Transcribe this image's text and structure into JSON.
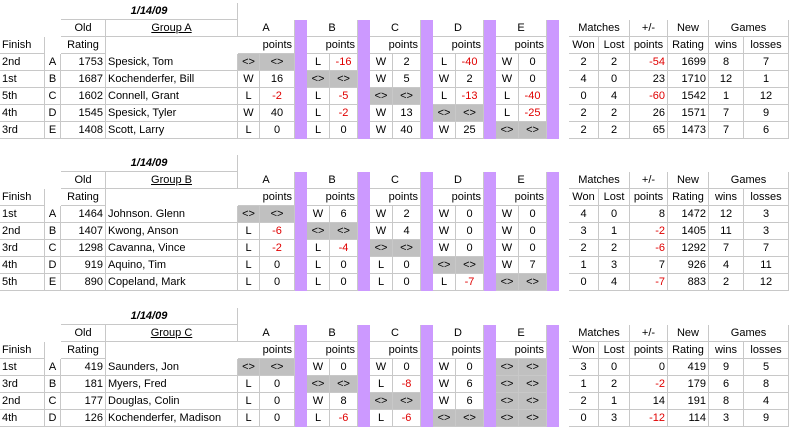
{
  "tables": [
    {
      "date": "1/14/09",
      "group": "Group A",
      "opponents": [
        "A",
        "B",
        "C",
        "D",
        "E"
      ],
      "header": {
        "finish": "Finish",
        "old": "Old",
        "rating": "Rating",
        "points": "points",
        "matches": "Matches",
        "won": "Won",
        "lost": "Lost",
        "plusminus": "+/-",
        "new": "New",
        "newrating": "Rating",
        "games": "Games",
        "wins": "wins",
        "losses": "losses"
      },
      "rows": [
        {
          "finish": "2nd",
          "seed": "A",
          "rating": "1753",
          "name": "Spesick, Tom",
          "res": [
            [
              "<>",
              "<>"
            ],
            [
              "L",
              "-16"
            ],
            [
              "W",
              "2"
            ],
            [
              "L",
              "-40"
            ],
            [
              "W",
              "0"
            ]
          ],
          "won": "2",
          "lost": "2",
          "pm": "-54",
          "new": "1699",
          "wins": "8",
          "losses": "7"
        },
        {
          "finish": "1st",
          "seed": "B",
          "rating": "1687",
          "name": "Kochenderfer, Bill",
          "res": [
            [
              "W",
              "16"
            ],
            [
              "<>",
              "<>"
            ],
            [
              "W",
              "5"
            ],
            [
              "W",
              "2"
            ],
            [
              "W",
              "0"
            ]
          ],
          "won": "4",
          "lost": "0",
          "pm": "23",
          "new": "1710",
          "wins": "12",
          "losses": "1"
        },
        {
          "finish": "5th",
          "seed": "C",
          "rating": "1602",
          "name": "Connell, Grant",
          "res": [
            [
              "L",
              "-2"
            ],
            [
              "L",
              "-5"
            ],
            [
              "<>",
              "<>"
            ],
            [
              "L",
              "-13"
            ],
            [
              "L",
              "-40"
            ]
          ],
          "won": "0",
          "lost": "4",
          "pm": "-60",
          "new": "1542",
          "wins": "1",
          "losses": "12"
        },
        {
          "finish": "4th",
          "seed": "D",
          "rating": "1545",
          "name": "Spesick, Tyler",
          "res": [
            [
              "W",
              "40"
            ],
            [
              "L",
              "-2"
            ],
            [
              "W",
              "13"
            ],
            [
              "<>",
              "<>"
            ],
            [
              "L",
              "-25"
            ]
          ],
          "won": "2",
          "lost": "2",
          "pm": "26",
          "new": "1571",
          "wins": "7",
          "losses": "9"
        },
        {
          "finish": "3rd",
          "seed": "E",
          "rating": "1408",
          "name": "Scott, Larry",
          "res": [
            [
              "L",
              "0"
            ],
            [
              "L",
              "0"
            ],
            [
              "W",
              "40"
            ],
            [
              "W",
              "25"
            ],
            [
              "<>",
              "<>"
            ]
          ],
          "won": "2",
          "lost": "2",
          "pm": "65",
          "new": "1473",
          "wins": "7",
          "losses": "6"
        }
      ]
    },
    {
      "date": "1/14/09",
      "group": "Group B",
      "opponents": [
        "A",
        "B",
        "C",
        "D",
        "E"
      ],
      "header": {
        "finish": "Finish",
        "old": "Old",
        "rating": "Rating",
        "points": "points",
        "matches": "Matches",
        "won": "Won",
        "lost": "Lost",
        "plusminus": "+/-",
        "new": "New",
        "newrating": "Rating",
        "games": "Games",
        "wins": "wins",
        "losses": "losses"
      },
      "rows": [
        {
          "finish": "1st",
          "seed": "A",
          "rating": "1464",
          "name": "Johnson. Glenn",
          "res": [
            [
              "<>",
              "<>"
            ],
            [
              "W",
              "6"
            ],
            [
              "W",
              "2"
            ],
            [
              "W",
              "0"
            ],
            [
              "W",
              "0"
            ]
          ],
          "won": "4",
          "lost": "0",
          "pm": "8",
          "new": "1472",
          "wins": "12",
          "losses": "3"
        },
        {
          "finish": "2nd",
          "seed": "B",
          "rating": "1407",
          "name": "Kwong, Anson",
          "res": [
            [
              "L",
              "-6"
            ],
            [
              "<>",
              "<>"
            ],
            [
              "W",
              "4"
            ],
            [
              "W",
              "0"
            ],
            [
              "W",
              "0"
            ]
          ],
          "won": "3",
          "lost": "1",
          "pm": "-2",
          "new": "1405",
          "wins": "11",
          "losses": "3"
        },
        {
          "finish": "3rd",
          "seed": "C",
          "rating": "1298",
          "name": "Cavanna, Vince",
          "res": [
            [
              "L",
              "-2"
            ],
            [
              "L",
              "-4"
            ],
            [
              "<>",
              "<>"
            ],
            [
              "W",
              "0"
            ],
            [
              "W",
              "0"
            ]
          ],
          "won": "2",
          "lost": "2",
          "pm": "-6",
          "new": "1292",
          "wins": "7",
          "losses": "7"
        },
        {
          "finish": "4th",
          "seed": "D",
          "rating": "919",
          "name": "Aquino, Tim",
          "res": [
            [
              "L",
              "0"
            ],
            [
              "L",
              "0"
            ],
            [
              "L",
              "0"
            ],
            [
              "<>",
              "<>"
            ],
            [
              "W",
              "7"
            ]
          ],
          "won": "1",
          "lost": "3",
          "pm": "7",
          "new": "926",
          "wins": "4",
          "losses": "11"
        },
        {
          "finish": "5th",
          "seed": "E",
          "rating": "890",
          "name": "Copeland, Mark",
          "res": [
            [
              "L",
              "0"
            ],
            [
              "L",
              "0"
            ],
            [
              "L",
              "0"
            ],
            [
              "L",
              "-7"
            ],
            [
              "<>",
              "<>"
            ]
          ],
          "won": "0",
          "lost": "4",
          "pm": "-7",
          "new": "883",
          "wins": "2",
          "losses": "12"
        }
      ]
    },
    {
      "date": "1/14/09",
      "group": "Group C",
      "opponents": [
        "A",
        "B",
        "C",
        "D",
        "E"
      ],
      "header": {
        "finish": "Finish",
        "old": "Old",
        "rating": "Rating",
        "points": "points",
        "matches": "Matches",
        "won": "Won",
        "lost": "Lost",
        "plusminus": "+/-",
        "new": "New",
        "newrating": "Rating",
        "games": "Games",
        "wins": "wins",
        "losses": "losses"
      },
      "rows": [
        {
          "finish": "1st",
          "seed": "A",
          "rating": "419",
          "name": "Saunders, Jon",
          "res": [
            [
              "<>",
              "<>"
            ],
            [
              "W",
              "0"
            ],
            [
              "W",
              "0"
            ],
            [
              "W",
              "0"
            ],
            [
              "<>",
              "<>"
            ]
          ],
          "won": "3",
          "lost": "0",
          "pm": "0",
          "new": "419",
          "wins": "9",
          "losses": "5"
        },
        {
          "finish": "3rd",
          "seed": "B",
          "rating": "181",
          "name": "Myers, Fred",
          "res": [
            [
              "L",
              "0"
            ],
            [
              "<>",
              "<>"
            ],
            [
              "L",
              "-8"
            ],
            [
              "W",
              "6"
            ],
            [
              "<>",
              "<>"
            ]
          ],
          "won": "1",
          "lost": "2",
          "pm": "-2",
          "new": "179",
          "wins": "6",
          "losses": "8"
        },
        {
          "finish": "2nd",
          "seed": "C",
          "rating": "177",
          "name": "Douglas, Colin",
          "res": [
            [
              "L",
              "0"
            ],
            [
              "W",
              "8"
            ],
            [
              "<>",
              "<>"
            ],
            [
              "W",
              "6"
            ],
            [
              "<>",
              "<>"
            ]
          ],
          "won": "2",
          "lost": "1",
          "pm": "14",
          "new": "191",
          "wins": "8",
          "losses": "4"
        },
        {
          "finish": "4th",
          "seed": "D",
          "rating": "126",
          "name": "Kochenderfer, Madison",
          "res": [
            [
              "L",
              "0"
            ],
            [
              "L",
              "-6"
            ],
            [
              "L",
              "-6"
            ],
            [
              "<>",
              "<>"
            ],
            [
              "<>",
              "<>"
            ]
          ],
          "won": "0",
          "lost": "3",
          "pm": "-12",
          "new": "114",
          "wins": "3",
          "losses": "9"
        }
      ]
    }
  ]
}
